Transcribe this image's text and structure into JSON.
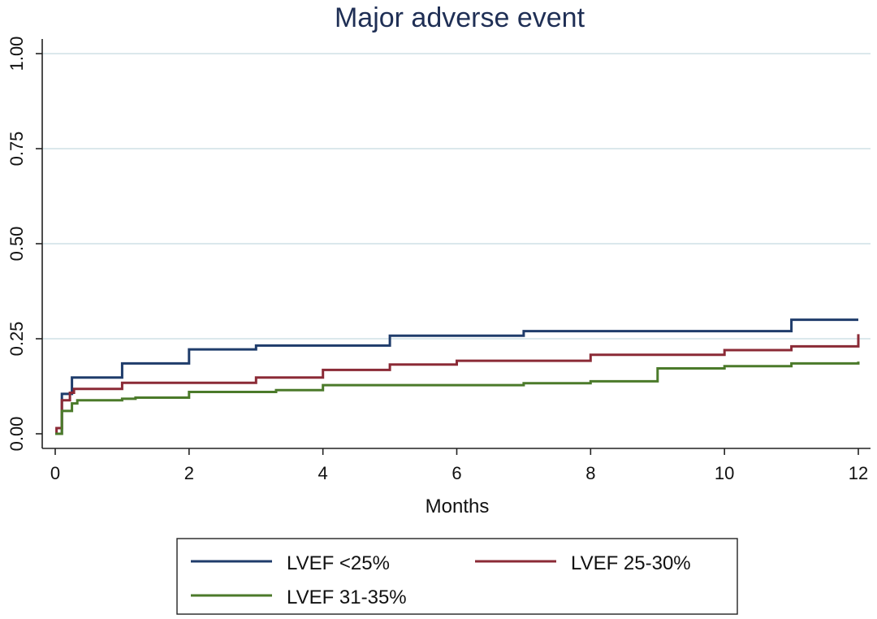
{
  "chart_data": {
    "type": "line",
    "title": "Major adverse event",
    "xlabel": "Months",
    "ylabel": "",
    "xlim": [
      0,
      12
    ],
    "ylim": [
      0,
      1
    ],
    "x_ticks": [
      0,
      2,
      4,
      6,
      8,
      10,
      12
    ],
    "x_tick_labels": [
      "0",
      "2",
      "4",
      "6",
      "8",
      "10",
      "12"
    ],
    "y_ticks": [
      0,
      0.25,
      0.5,
      0.75,
      1
    ],
    "y_tick_labels": [
      "0.00",
      "0.25",
      "0.50",
      "0.75",
      "1.00"
    ],
    "grid": true,
    "legend_position": "bottom",
    "step": true,
    "series": [
      {
        "name": "LVEF <25%",
        "color": "#1f3c6b",
        "points": [
          [
            0,
            0
          ],
          [
            0.1,
            0
          ],
          [
            0.1,
            0.105
          ],
          [
            0.25,
            0.105
          ],
          [
            0.25,
            0.148
          ],
          [
            1,
            0.148
          ],
          [
            1,
            0.185
          ],
          [
            2,
            0.185
          ],
          [
            2,
            0.222
          ],
          [
            3,
            0.222
          ],
          [
            3,
            0.232
          ],
          [
            5,
            0.232
          ],
          [
            5,
            0.258
          ],
          [
            7,
            0.258
          ],
          [
            7,
            0.27
          ],
          [
            11,
            0.27
          ],
          [
            11,
            0.3
          ],
          [
            12,
            0.3
          ]
        ]
      },
      {
        "name": "LVEF 25-30%",
        "color": "#8b2a36",
        "points": [
          [
            0,
            0
          ],
          [
            0.02,
            0
          ],
          [
            0.02,
            0.015
          ],
          [
            0.1,
            0.015
          ],
          [
            0.1,
            0.088
          ],
          [
            0.22,
            0.088
          ],
          [
            0.22,
            0.108
          ],
          [
            0.28,
            0.108
          ],
          [
            0.28,
            0.118
          ],
          [
            1,
            0.118
          ],
          [
            1,
            0.134
          ],
          [
            3,
            0.134
          ],
          [
            3,
            0.148
          ],
          [
            4,
            0.148
          ],
          [
            4,
            0.168
          ],
          [
            5,
            0.168
          ],
          [
            5,
            0.182
          ],
          [
            6,
            0.182
          ],
          [
            6,
            0.192
          ],
          [
            8,
            0.192
          ],
          [
            8,
            0.208
          ],
          [
            10,
            0.208
          ],
          [
            10,
            0.22
          ],
          [
            11,
            0.22
          ],
          [
            11,
            0.23
          ],
          [
            12,
            0.23
          ],
          [
            12,
            0.262
          ]
        ]
      },
      {
        "name": "LVEF 31-35%",
        "color": "#4b7a2a",
        "points": [
          [
            0,
            0
          ],
          [
            0.1,
            0
          ],
          [
            0.1,
            0.06
          ],
          [
            0.25,
            0.06
          ],
          [
            0.25,
            0.08
          ],
          [
            0.33,
            0.08
          ],
          [
            0.33,
            0.088
          ],
          [
            1,
            0.088
          ],
          [
            1,
            0.092
          ],
          [
            1.2,
            0.092
          ],
          [
            1.2,
            0.095
          ],
          [
            2,
            0.095
          ],
          [
            2,
            0.11
          ],
          [
            3.3,
            0.11
          ],
          [
            3.3,
            0.115
          ],
          [
            4,
            0.115
          ],
          [
            4,
            0.128
          ],
          [
            7,
            0.128
          ],
          [
            7,
            0.133
          ],
          [
            8,
            0.133
          ],
          [
            8,
            0.138
          ],
          [
            9,
            0.138
          ],
          [
            9,
            0.172
          ],
          [
            10,
            0.172
          ],
          [
            10,
            0.178
          ],
          [
            11,
            0.178
          ],
          [
            11,
            0.185
          ],
          [
            12,
            0.185
          ],
          [
            12,
            0.19
          ]
        ]
      }
    ]
  }
}
